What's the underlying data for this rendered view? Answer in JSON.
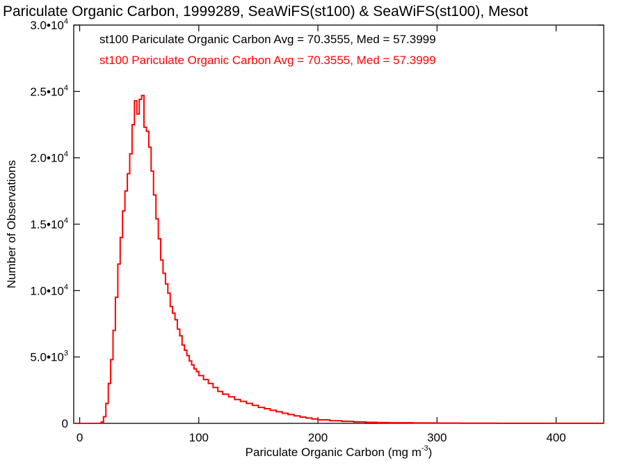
{
  "chart_data": {
    "type": "line",
    "title": "Pariculate Organic Carbon, 1999289, SeaWiFS(st100) & SeaWiFS(st100), Mesot",
    "xlabel": "Pariculate Organic Carbon (mg m",
    "xlabel_unit_exponent": "-3",
    "xlabel_close": ")",
    "ylabel": "Number of Observations",
    "xlim": [
      -5,
      440
    ],
    "ylim": [
      0,
      30000
    ],
    "x_ticks": [
      0,
      100,
      200,
      300,
      400
    ],
    "x_tick_labels": [
      "0",
      "100",
      "200",
      "300",
      "400"
    ],
    "y_ticks": [
      {
        "value": 0,
        "mantissa": "0",
        "exponent": ""
      },
      {
        "value": 5000,
        "mantissa": "5.0•10",
        "exponent": "3"
      },
      {
        "value": 10000,
        "mantissa": "1.0•10",
        "exponent": "4"
      },
      {
        "value": 15000,
        "mantissa": "1.5•10",
        "exponent": "4"
      },
      {
        "value": 20000,
        "mantissa": "2.0•10",
        "exponent": "4"
      },
      {
        "value": 25000,
        "mantissa": "2.5•10",
        "exponent": "4"
      },
      {
        "value": 30000,
        "mantissa": "3.0•10",
        "exponent": "4"
      }
    ],
    "legend": [
      {
        "text": "st100 Pariculate Organic Carbon Avg = 70.3555, Med = 57.3999",
        "color": "#000000"
      },
      {
        "text": "st100 Pariculate Organic Carbon Avg = 70.3555, Med = 57.3999",
        "color": "#ff0000"
      }
    ],
    "series": [
      {
        "color": "#ff0000",
        "step": "post",
        "points": [
          [
            -5,
            0
          ],
          [
            10,
            0
          ],
          [
            18,
            100
          ],
          [
            20,
            500
          ],
          [
            22,
            1500
          ],
          [
            24,
            3000
          ],
          [
            26,
            4800
          ],
          [
            28,
            7000
          ],
          [
            30,
            9500
          ],
          [
            32,
            12000
          ],
          [
            34,
            14000
          ],
          [
            36,
            16000
          ],
          [
            38,
            17500
          ],
          [
            40,
            18800
          ],
          [
            42,
            20300
          ],
          [
            44,
            22500
          ],
          [
            46,
            24300
          ],
          [
            48,
            23300
          ],
          [
            50,
            24400
          ],
          [
            52,
            24700
          ],
          [
            54,
            22300
          ],
          [
            56,
            22000
          ],
          [
            58,
            20800
          ],
          [
            60,
            19000
          ],
          [
            62,
            17200
          ],
          [
            64,
            15400
          ],
          [
            66,
            13900
          ],
          [
            68,
            12300
          ],
          [
            70,
            11300
          ],
          [
            72,
            10500
          ],
          [
            74,
            9800
          ],
          [
            76,
            8800
          ],
          [
            78,
            8300
          ],
          [
            80,
            7800
          ],
          [
            82,
            7100
          ],
          [
            84,
            6600
          ],
          [
            86,
            5900
          ],
          [
            88,
            5500
          ],
          [
            90,
            5100
          ],
          [
            92,
            4700
          ],
          [
            94,
            4400
          ],
          [
            96,
            4100
          ],
          [
            98,
            3900
          ],
          [
            100,
            3600
          ],
          [
            104,
            3300
          ],
          [
            108,
            3000
          ],
          [
            112,
            2700
          ],
          [
            116,
            2400
          ],
          [
            120,
            2200
          ],
          [
            125,
            2000
          ],
          [
            130,
            1800
          ],
          [
            135,
            1650
          ],
          [
            140,
            1500
          ],
          [
            145,
            1350
          ],
          [
            150,
            1200
          ],
          [
            155,
            1100
          ],
          [
            160,
            980
          ],
          [
            165,
            870
          ],
          [
            170,
            760
          ],
          [
            175,
            660
          ],
          [
            180,
            560
          ],
          [
            185,
            470
          ],
          [
            190,
            400
          ],
          [
            195,
            330
          ],
          [
            200,
            260
          ],
          [
            210,
            200
          ],
          [
            220,
            150
          ],
          [
            230,
            110
          ],
          [
            240,
            80
          ],
          [
            250,
            60
          ],
          [
            260,
            45
          ],
          [
            280,
            30
          ],
          [
            300,
            20
          ],
          [
            320,
            12
          ],
          [
            350,
            6
          ],
          [
            400,
            3
          ],
          [
            440,
            3
          ]
        ]
      }
    ]
  }
}
